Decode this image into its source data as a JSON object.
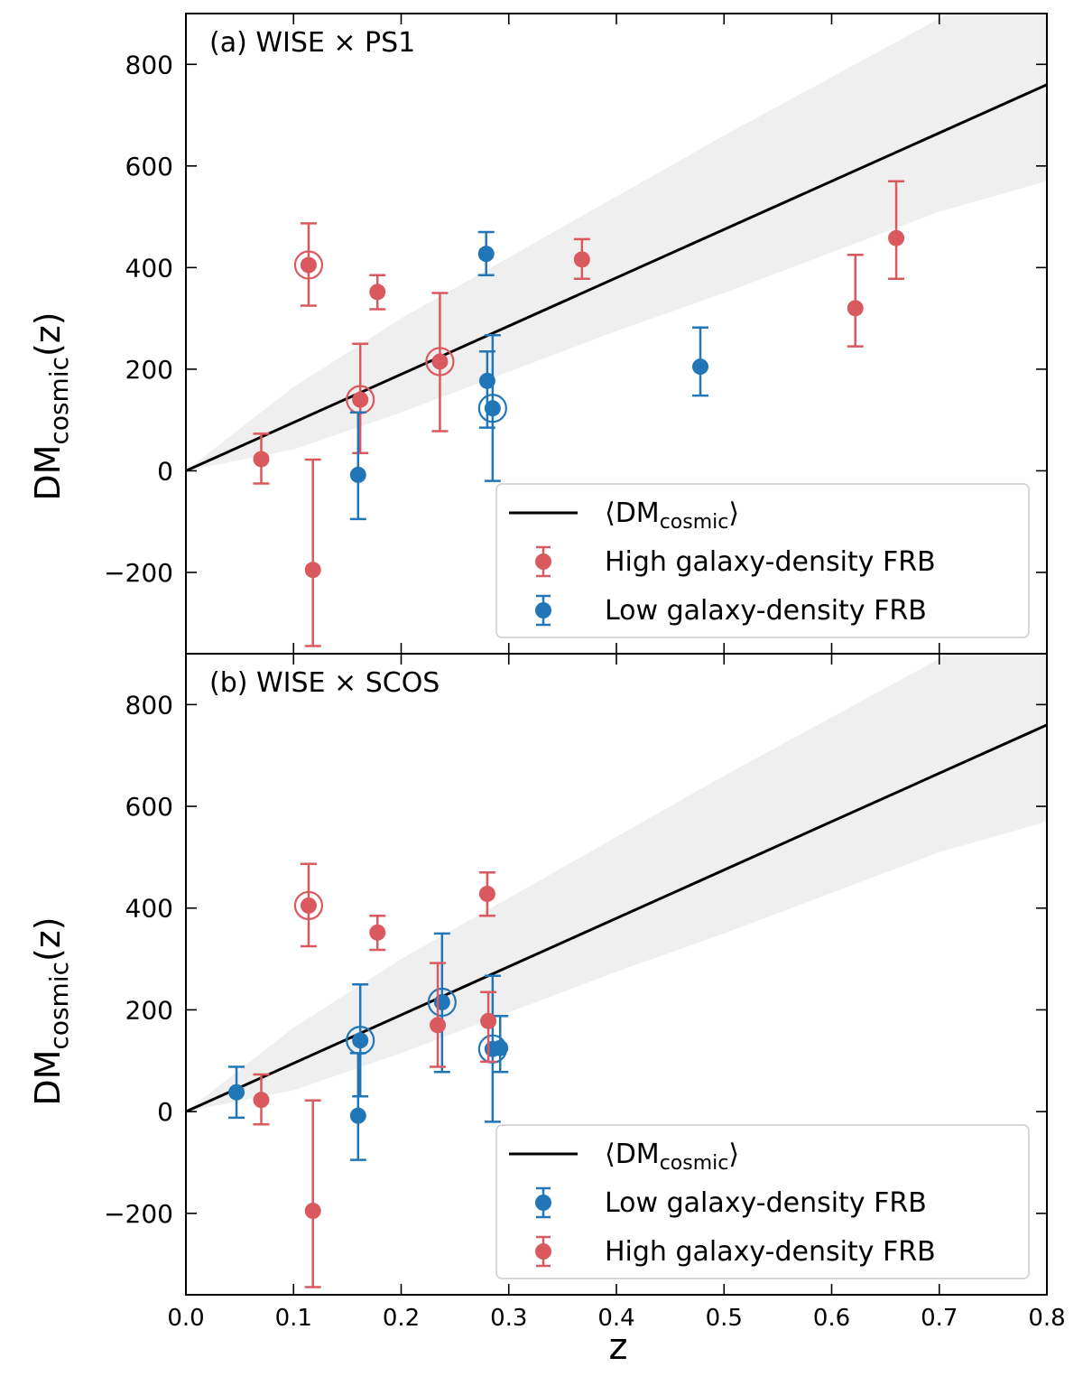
{
  "figure": {
    "xlabel": "z",
    "ylabel_main": "DM",
    "ylabel_sub": "cosmic",
    "ylabel_tail": "(z)"
  },
  "colors": {
    "high": "#d9595f",
    "low": "#2176b8",
    "band": "#efefef",
    "mean_line": "#000000"
  },
  "chart_data": [
    {
      "type": "scatter",
      "panel": "a",
      "title": "(a) WISE × PS1",
      "xlabel": "",
      "ylabel": "DMcosmic(z)",
      "xlim": [
        0.0,
        0.8
      ],
      "ylim": [
        -360,
        900
      ],
      "xticks": [
        0.0,
        0.1,
        0.2,
        0.3,
        0.4,
        0.5,
        0.6,
        0.7,
        0.8
      ],
      "xtick_labels": [
        "",
        "",
        "",
        "",
        "",
        "",
        "",
        "",
        ""
      ],
      "yticks": [
        -200,
        0,
        200,
        400,
        600,
        800
      ],
      "ytick_labels": [
        "−200",
        "0",
        "200",
        "400",
        "600",
        "800"
      ],
      "legend_position": "lower-right",
      "legend": [
        {
          "label_main": "⟨DM",
          "label_sub": "cosmic",
          "label_tail": "⟩",
          "kind": "line"
        },
        {
          "label": "High galaxy-density FRB",
          "kind": "high"
        },
        {
          "label": "Low galaxy-density FRB",
          "kind": "low"
        }
      ],
      "mean_line": {
        "label": "⟨DMcosmic⟩",
        "x": [
          0.0,
          0.8
        ],
        "y": [
          0,
          760
        ]
      },
      "band": {
        "x": [
          0.0,
          0.1,
          0.2,
          0.3,
          0.4,
          0.5,
          0.6,
          0.7,
          0.8
        ],
        "lower": [
          0,
          42,
          115,
          195,
          275,
          350,
          430,
          510,
          570
        ],
        "upper": [
          0,
          165,
          300,
          420,
          540,
          660,
          775,
          890,
          1005
        ]
      },
      "series": [
        {
          "name": "High galaxy-density FRB",
          "group": "high",
          "points": [
            {
              "x": 0.07,
              "y": 23,
              "lo": -25,
              "hi": 73,
              "circled": false
            },
            {
              "x": 0.114,
              "y": 405,
              "lo": 325,
              "hi": 487,
              "circled": true
            },
            {
              "x": 0.118,
              "y": -195,
              "lo": -345,
              "hi": 22,
              "circled": false
            },
            {
              "x": 0.162,
              "y": 140,
              "lo": 35,
              "hi": 250,
              "circled": true
            },
            {
              "x": 0.178,
              "y": 352,
              "lo": 318,
              "hi": 385,
              "circled": false
            },
            {
              "x": 0.236,
              "y": 215,
              "lo": 78,
              "hi": 350,
              "circled": true
            },
            {
              "x": 0.368,
              "y": 416,
              "lo": 378,
              "hi": 456,
              "circled": false
            },
            {
              "x": 0.622,
              "y": 320,
              "lo": 245,
              "hi": 425,
              "circled": false
            },
            {
              "x": 0.66,
              "y": 458,
              "lo": 378,
              "hi": 570,
              "circled": false
            }
          ]
        },
        {
          "name": "Low galaxy-density FRB",
          "group": "low",
          "points": [
            {
              "x": 0.16,
              "y": -8,
              "lo": -95,
              "hi": 115,
              "circled": false
            },
            {
              "x": 0.279,
              "y": 427,
              "lo": 385,
              "hi": 470,
              "circled": false
            },
            {
              "x": 0.28,
              "y": 177,
              "lo": 85,
              "hi": 235,
              "circled": false
            },
            {
              "x": 0.285,
              "y": 123,
              "lo": -20,
              "hi": 267,
              "circled": true
            },
            {
              "x": 0.478,
              "y": 205,
              "lo": 148,
              "hi": 282,
              "circled": false
            }
          ]
        }
      ]
    },
    {
      "type": "scatter",
      "panel": "b",
      "title": "(b) WISE × SCOS",
      "xlabel": "z",
      "ylabel": "DMcosmic(z)",
      "xlim": [
        0.0,
        0.8
      ],
      "ylim": [
        -360,
        900
      ],
      "xticks": [
        0.0,
        0.1,
        0.2,
        0.3,
        0.4,
        0.5,
        0.6,
        0.7,
        0.8
      ],
      "xtick_labels": [
        "0.0",
        "0.1",
        "0.2",
        "0.3",
        "0.4",
        "0.5",
        "0.6",
        "0.7",
        "0.8"
      ],
      "yticks": [
        -200,
        0,
        200,
        400,
        600,
        800
      ],
      "ytick_labels": [
        "−200",
        "0",
        "200",
        "400",
        "600",
        "800"
      ],
      "legend_position": "lower-right",
      "legend": [
        {
          "label_main": "⟨DM",
          "label_sub": "cosmic",
          "label_tail": "⟩",
          "kind": "line"
        },
        {
          "label": "Low galaxy-density FRB",
          "kind": "low"
        },
        {
          "label": "High galaxy-density FRB",
          "kind": "high"
        }
      ],
      "mean_line": {
        "label": "⟨DMcosmic⟩",
        "x": [
          0.0,
          0.8
        ],
        "y": [
          0,
          760
        ]
      },
      "band": {
        "x": [
          0.0,
          0.1,
          0.2,
          0.3,
          0.4,
          0.5,
          0.6,
          0.7,
          0.8
        ],
        "lower": [
          0,
          42,
          115,
          195,
          275,
          350,
          430,
          510,
          570
        ],
        "upper": [
          0,
          165,
          300,
          420,
          540,
          660,
          775,
          890,
          1005
        ]
      },
      "series": [
        {
          "name": "Low galaxy-density FRB",
          "group": "low",
          "points": [
            {
              "x": 0.047,
              "y": 38,
              "lo": -12,
              "hi": 88,
              "circled": false
            },
            {
              "x": 0.16,
              "y": -8,
              "lo": -95,
              "hi": 115,
              "circled": false
            },
            {
              "x": 0.162,
              "y": 140,
              "lo": 30,
              "hi": 250,
              "circled": true
            },
            {
              "x": 0.238,
              "y": 215,
              "lo": 78,
              "hi": 350,
              "circled": true
            },
            {
              "x": 0.285,
              "y": 123,
              "lo": -20,
              "hi": 267,
              "circled": true
            },
            {
              "x": 0.292,
              "y": 125,
              "lo": 78,
              "hi": 188,
              "circled": false
            }
          ]
        },
        {
          "name": "High galaxy-density FRB",
          "group": "high",
          "points": [
            {
              "x": 0.07,
              "y": 23,
              "lo": -25,
              "hi": 73,
              "circled": false
            },
            {
              "x": 0.114,
              "y": 405,
              "lo": 325,
              "hi": 487,
              "circled": true
            },
            {
              "x": 0.118,
              "y": -195,
              "lo": -345,
              "hi": 22,
              "circled": false
            },
            {
              "x": 0.178,
              "y": 352,
              "lo": 318,
              "hi": 385,
              "circled": false
            },
            {
              "x": 0.234,
              "y": 170,
              "lo": 88,
              "hi": 292,
              "circled": false
            },
            {
              "x": 0.28,
              "y": 428,
              "lo": 385,
              "hi": 470,
              "circled": false
            },
            {
              "x": 0.281,
              "y": 178,
              "lo": 98,
              "hi": 235,
              "circled": false
            }
          ]
        }
      ]
    }
  ]
}
